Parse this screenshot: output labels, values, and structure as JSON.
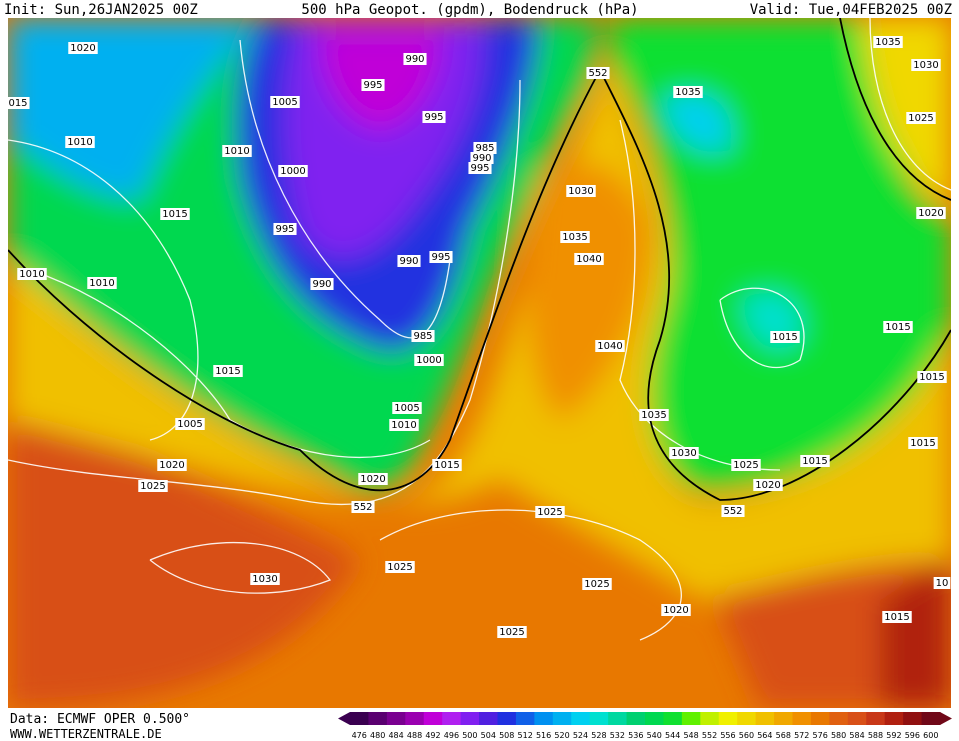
{
  "header": {
    "init": "Init: Sun,26JAN2025 00Z",
    "title": "500 hPa Geopot. (gpdm), Bodendruck (hPa)",
    "valid": "Valid: Tue,04FEB2025 00Z"
  },
  "footer": {
    "source": "Data: ECMWF OPER 0.500°",
    "website": "WWW.WETTERZENTRALE.DE"
  },
  "isobar_labels": [
    "1020",
    "015",
    "1010",
    "1015",
    "1010",
    "1010",
    "1015",
    "1005",
    "1020",
    "1025",
    "1030",
    "1025",
    "1020",
    "1015",
    "1010",
    "1005",
    "1000",
    "985",
    "990",
    "995",
    "990",
    "995",
    "1000",
    "1010",
    "1005",
    "995",
    "990",
    "995",
    "985",
    "990",
    "995",
    "552",
    "1030",
    "1035",
    "1040",
    "1040",
    "1035",
    "1035",
    "1030",
    "1025",
    "1020",
    "1015",
    "1015",
    "1015",
    "1015",
    "1035",
    "1030",
    "1025",
    "1020",
    "1015",
    "552",
    "552",
    "1025",
    "1025",
    "1020",
    "1025",
    "1015",
    "10"
  ],
  "scale": {
    "labels": [
      476,
      480,
      484,
      488,
      492,
      496,
      500,
      504,
      508,
      512,
      516,
      520,
      524,
      528,
      532,
      536,
      540,
      544,
      548,
      552,
      556,
      560,
      564,
      568,
      572,
      576,
      580,
      584,
      588,
      592,
      596,
      600
    ],
    "colors": [
      "#3a0050",
      "#5a0070",
      "#7a0090",
      "#9a00b0",
      "#c000d8",
      "#b020f0",
      "#8020f0",
      "#5020e0",
      "#2030e0",
      "#1060e8",
      "#0090f0",
      "#00b0f0",
      "#00d0f0",
      "#00e0d0",
      "#00d8a0",
      "#00d070",
      "#00d850",
      "#10e030",
      "#60f000",
      "#c0f000",
      "#f0f000",
      "#f0d800",
      "#f0c000",
      "#f0a800",
      "#f09000",
      "#e87800",
      "#e06010",
      "#d85018",
      "#c83818",
      "#b02010",
      "#901010",
      "#700818"
    ]
  }
}
